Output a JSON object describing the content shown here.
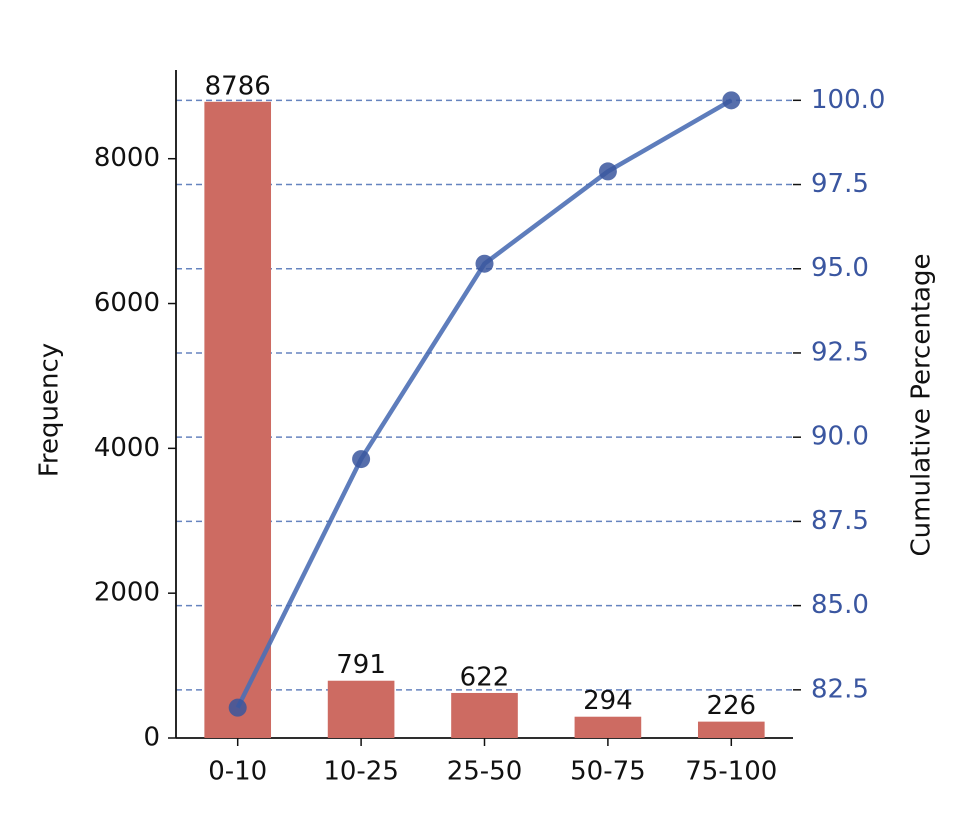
{
  "chart_data": {
    "type": "bar",
    "categories": [
      "0-10",
      "10-25",
      "25-50",
      "50-75",
      "75-100"
    ],
    "series": [
      {
        "type": "bar",
        "color": "#cd6b62",
        "values": [
          8786,
          791,
          622,
          294,
          226
        ]
      },
      {
        "type": "line",
        "color": "#4c6fb5",
        "marker_color": "#3a569e",
        "axis": "y2",
        "values": [
          81.97,
          89.35,
          95.15,
          97.89,
          100.0
        ]
      }
    ],
    "ylabel": "Frequency",
    "y2label": "Cumulative Percentage",
    "y2label_color": "#3a56a0",
    "ylim": [
      0,
      9225
    ],
    "yticks": [
      0,
      2000,
      4000,
      6000,
      8000
    ],
    "y2lim": [
      81.07,
      100.9
    ],
    "y2ticks": [
      82.5,
      {
        "value": 85,
        "label": "85.0"
      },
      87.5,
      {
        "value": 90,
        "label": "90.0"
      },
      92.5,
      {
        "value": 95,
        "label": "95.0"
      },
      97.5,
      {
        "value": 100,
        "label": "100.0"
      }
    ],
    "grid": true,
    "grid_color": "#4c6fb5"
  }
}
